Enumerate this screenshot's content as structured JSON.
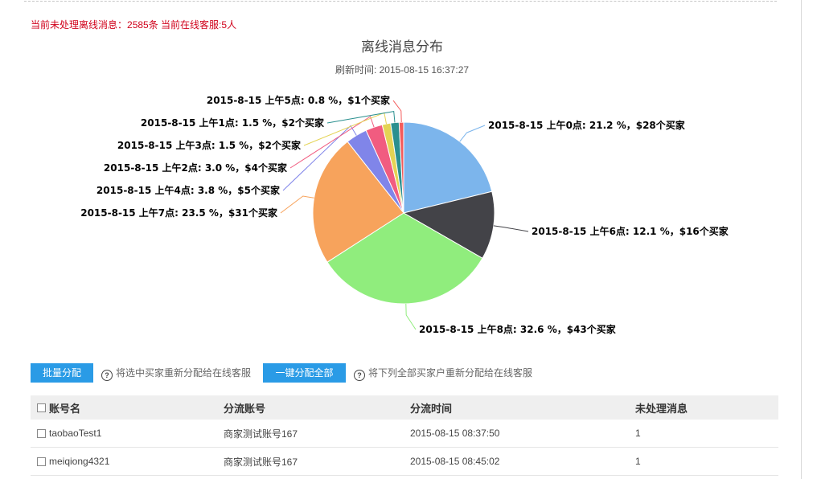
{
  "status": {
    "unprocessed_label": "当前未处理离线消息：",
    "unprocessed_count": "2585条",
    "online_label": " 当前在线客服:",
    "online_count": "5人"
  },
  "chart": {
    "title": "离线消息分布",
    "refresh_label": "刷新时间: ",
    "refresh_time": "2015-08-15 16:37:27"
  },
  "chart_data": {
    "type": "pie",
    "title": "离线消息分布",
    "subtitle": "刷新时间: 2015-08-15 16:37:27",
    "slices": [
      {
        "label": "2015-8-15 上午0点",
        "percent": 21.2,
        "buyers": 28,
        "text": "2015-8-15 上午0点: 21.2 %，$28个买家",
        "color": "#7cb5ec"
      },
      {
        "label": "2015-8-15 上午6点",
        "percent": 12.1,
        "buyers": 16,
        "text": "2015-8-15 上午6点: 12.1 %，$16个买家",
        "color": "#434348"
      },
      {
        "label": "2015-8-15 上午8点",
        "percent": 32.6,
        "buyers": 43,
        "text": "2015-8-15 上午8点: 32.6 %，$43个买家",
        "color": "#90ed7d"
      },
      {
        "label": "2015-8-15 上午7点",
        "percent": 23.5,
        "buyers": 31,
        "text": "2015-8-15 上午7点: 23.5 %，$31个买家",
        "color": "#f7a35c"
      },
      {
        "label": "2015-8-15 上午4点",
        "percent": 3.8,
        "buyers": 5,
        "text": "2015-8-15 上午4点: 3.8 %，$5个买家",
        "color": "#8085e9"
      },
      {
        "label": "2015-8-15 上午2点",
        "percent": 3.0,
        "buyers": 4,
        "text": "2015-8-15 上午2点: 3.0 %，$4个买家",
        "color": "#f15c80"
      },
      {
        "label": "2015-8-15 上午3点",
        "percent": 1.5,
        "buyers": 2,
        "text": "2015-8-15 上午3点: 1.5 %，$2个买家",
        "color": "#e4d354"
      },
      {
        "label": "2015-8-15 上午1点",
        "percent": 1.5,
        "buyers": 2,
        "text": "2015-8-15 上午1点: 1.5 %，$2个买家",
        "color": "#2b908f"
      },
      {
        "label": "2015-8-15 上午5点",
        "percent": 0.8,
        "buyers": 1,
        "text": "2015-8-15 上午5点: 0.8 %，$1个买家",
        "color": "#f45b5b"
      }
    ]
  },
  "actions": {
    "batch_assign": "批量分配",
    "batch_hint": "将选中买家重新分配给在线客服",
    "assign_all": "一键分配全部",
    "assign_all_hint": "将下列全部买家户重新分配给在线客服",
    "help_glyph": "?"
  },
  "table": {
    "headers": [
      "账号名",
      "分流账号",
      "分流时间",
      "未处理消息"
    ],
    "rows": [
      [
        "taobaoTest1",
        "商家测试账号167",
        "2015-08-15 08:37:50",
        "1"
      ],
      [
        "meiqiong4321",
        "商家测试账号167",
        "2015-08-15 08:45:02",
        "1"
      ]
    ]
  }
}
